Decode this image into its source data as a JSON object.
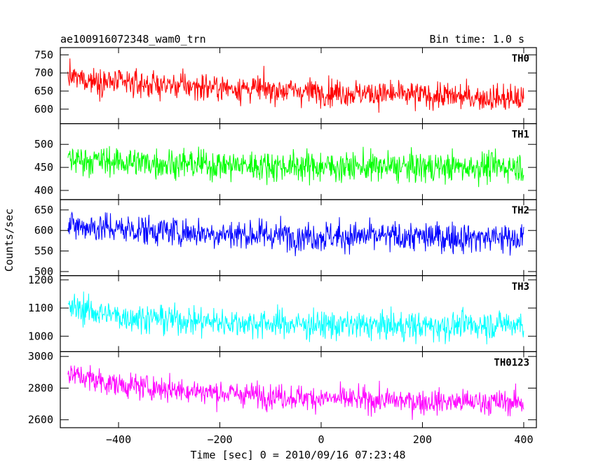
{
  "chart_data": {
    "type": "line",
    "title": "ae100916072348_wam0_trn",
    "bin_time_label": "Bin time: 1.0 s",
    "xlabel": "Time [sec] 0 = 2010/09/16 07:23:48",
    "ylabel": "Counts/sec",
    "xlim": [
      -515,
      425
    ],
    "x_ticks": [
      -400,
      -200,
      0,
      200,
      400
    ],
    "x_tick_labels": [
      "−400",
      "−200",
      "0",
      "200",
      "400"
    ],
    "panels": [
      {
        "name": "TH0",
        "color": "#ff0000",
        "ylim": [
          560,
          770
        ],
        "y_ticks": [
          600,
          650,
          700,
          750
        ],
        "y_tick_labels": [
          "600",
          "650",
          "700",
          "750"
        ],
        "x_start": -500,
        "x_end": 400,
        "trend": [
          [
            -500,
            688
          ],
          [
            -400,
            672
          ],
          [
            -200,
            660
          ],
          [
            0,
            648
          ],
          [
            200,
            638
          ],
          [
            400,
            628
          ]
        ],
        "noise": 26
      },
      {
        "name": "TH1",
        "color": "#00ff00",
        "ylim": [
          380,
          545
        ],
        "y_ticks": [
          400,
          450,
          500
        ],
        "y_tick_labels": [
          "400",
          "450",
          "500"
        ],
        "x_start": -500,
        "x_end": 400,
        "trend": [
          [
            -500,
            468
          ],
          [
            -400,
            462
          ],
          [
            -200,
            455
          ],
          [
            0,
            452
          ],
          [
            200,
            450
          ],
          [
            400,
            452
          ]
        ],
        "noise": 23
      },
      {
        "name": "TH2",
        "color": "#0000ff",
        "ylim": [
          490,
          675
        ],
        "y_ticks": [
          500,
          550,
          600,
          650
        ],
        "y_tick_labels": [
          "500",
          "550",
          "600",
          "650"
        ],
        "x_start": -500,
        "x_end": 400,
        "trend": [
          [
            -500,
            612
          ],
          [
            -400,
            604
          ],
          [
            -200,
            592
          ],
          [
            0,
            586
          ],
          [
            200,
            584
          ],
          [
            400,
            582
          ]
        ],
        "noise": 26
      },
      {
        "name": "TH3",
        "color": "#00ffff",
        "ylim": [
          945,
          1215
        ],
        "y_ticks": [
          1000,
          1100,
          1200
        ],
        "y_tick_labels": [
          "1000",
          "1100",
          "1200"
        ],
        "x_start": -500,
        "x_end": 400,
        "trend": [
          [
            -500,
            1105
          ],
          [
            -400,
            1070
          ],
          [
            -200,
            1050
          ],
          [
            0,
            1040
          ],
          [
            200,
            1035
          ],
          [
            400,
            1045
          ]
        ],
        "noise": 36
      },
      {
        "name": "TH0123",
        "color": "#ff00ff",
        "ylim": [
          2550,
          3030
        ],
        "y_ticks": [
          2600,
          2800,
          3000
        ],
        "y_tick_labels": [
          "2600",
          "2800",
          "3000"
        ],
        "x_start": -500,
        "x_end": 400,
        "trend": [
          [
            -500,
            2890
          ],
          [
            -400,
            2820
          ],
          [
            -200,
            2770
          ],
          [
            0,
            2735
          ],
          [
            200,
            2715
          ],
          [
            400,
            2710
          ]
        ],
        "noise": 55
      }
    ]
  }
}
